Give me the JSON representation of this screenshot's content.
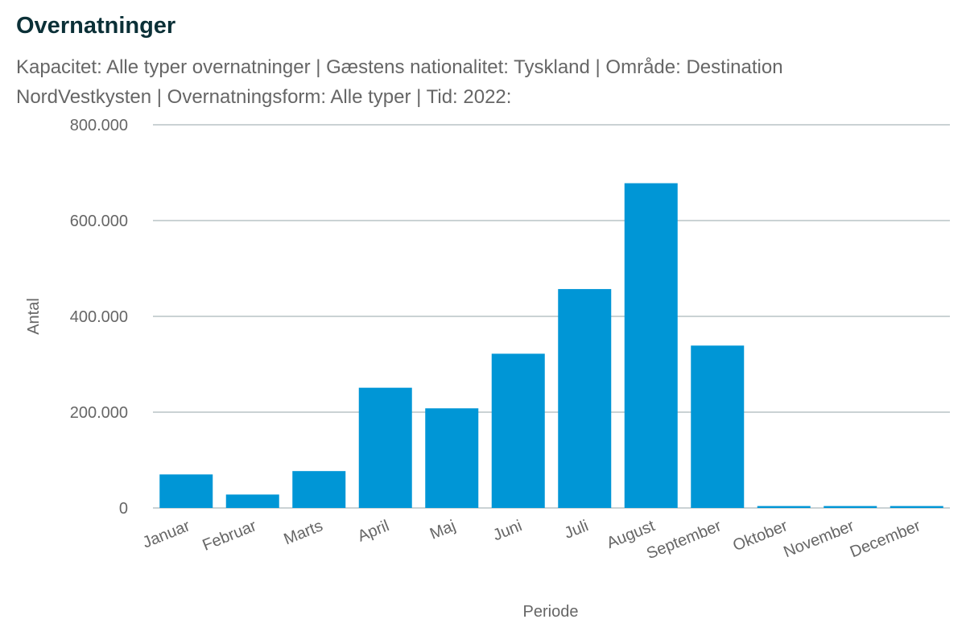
{
  "header": {
    "title": "Overnatninger",
    "subtitle": "Kapacitet: Alle typer overnatninger | Gæstens nationalitet: Tyskland | Område: Destination NordVestkysten | Overnatningsform: Alle typer | Tid: 2022:"
  },
  "colors": {
    "bar": "#0096d6",
    "grid": "#b8c4c6",
    "title": "#0b3037",
    "text": "#666666"
  },
  "chart_data": {
    "type": "bar",
    "title": "Overnatninger",
    "xlabel": "Periode",
    "ylabel": "Antal",
    "categories": [
      "Januar",
      "Februar",
      "Marts",
      "April",
      "Maj",
      "Juni",
      "Juli",
      "August",
      "September",
      "Oktober",
      "November",
      "December"
    ],
    "series": [
      {
        "values": [
          70000,
          28000,
          77000,
          251000,
          208000,
          322000,
          457000,
          678000,
          339000,
          4000,
          4000,
          4000
        ]
      }
    ],
    "ylim": [
      0,
      800000
    ],
    "yticks": [
      0,
      200000,
      400000,
      600000,
      800000
    ],
    "ytick_labels": [
      "0",
      "200.000",
      "400.000",
      "600.000",
      "800.000"
    ],
    "grid": true,
    "legend": "none"
  }
}
